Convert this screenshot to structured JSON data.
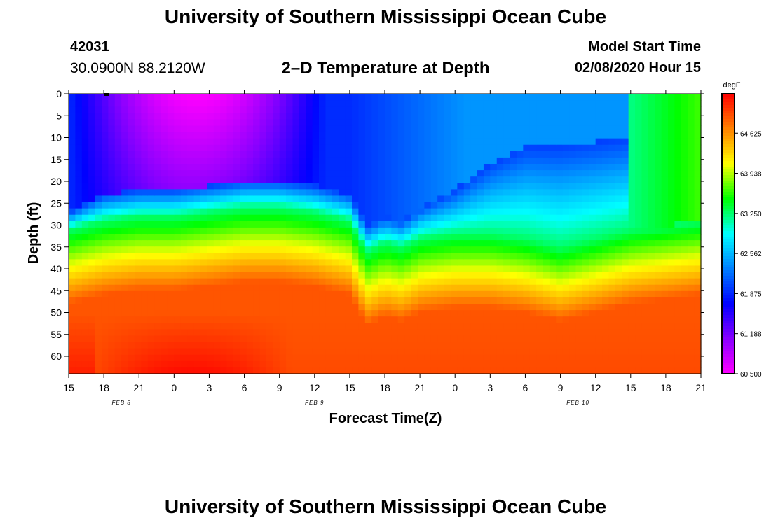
{
  "header": {
    "top_title": "University of Southern Mississippi Ocean Cube",
    "station_id": "42031",
    "coordinates": "30.0900N 88.2120W",
    "chart_title": "2–D Temperature at Depth",
    "model_start_label": "Model Start Time",
    "model_start_value": "02/08/2020 Hour 15"
  },
  "footer": {
    "bottom_title": "University of Southern Mississippi Ocean Cube"
  },
  "chart_data": {
    "type": "heatmap",
    "title": "2–D Temperature at Depth",
    "xlabel": "Forecast Time(Z)",
    "ylabel": "Depth (ft)",
    "x_tick_labels": [
      "15",
      "18",
      "21",
      "0",
      "3",
      "6",
      "9",
      "12",
      "15",
      "18",
      "21",
      "0",
      "3",
      "6",
      "9",
      "12",
      "15",
      "18",
      "21"
    ],
    "x_range_hours": [
      0,
      54
    ],
    "date_labels": [
      {
        "label": "FEB 8",
        "hour": 4.5
      },
      {
        "label": "FEB 9",
        "hour": 21
      },
      {
        "label": "FEB 10",
        "hour": 43.5
      }
    ],
    "y_ticks": [
      0,
      5,
      10,
      15,
      20,
      25,
      30,
      35,
      40,
      45,
      50,
      55,
      60
    ],
    "y_range": [
      0,
      64
    ],
    "colorbar": {
      "unit": "degF",
      "min": 60.5,
      "max": 65.3,
      "tick_values": [
        60.5,
        61.188,
        61.875,
        62.562,
        63.25,
        63.938,
        64.625
      ],
      "tick_labels": [
        "60.500",
        "61.188",
        "61.875",
        "62.562",
        "63.250",
        "63.938",
        "64.625"
      ],
      "colors": [
        "#ff00ff",
        "#8800ff",
        "#0000ff",
        "#0080ff",
        "#00ffff",
        "#00ff00",
        "#ffff00",
        "#ff8000",
        "#ff0000"
      ]
    },
    "thermocline": {
      "hours": [
        0,
        3,
        6,
        9,
        12,
        15,
        18,
        21,
        24,
        25.5,
        27,
        28.5,
        30,
        33,
        36,
        39,
        42,
        45,
        48,
        51,
        54
      ],
      "iso_25_depth_ft": [
        31,
        29,
        28,
        28,
        27,
        26,
        26,
        27,
        29,
        36,
        34,
        35,
        33,
        32,
        32,
        33,
        35,
        33,
        31,
        30,
        29
      ],
      "upper_iso_depth_ft": [
        27,
        23,
        22,
        22,
        21,
        20,
        20,
        21,
        23,
        30,
        28,
        29,
        26,
        22,
        16,
        12,
        12,
        11,
        10,
        9,
        8
      ],
      "deep_warm_core_hours": [
        2,
        19
      ],
      "surface_cold_core_hours": [
        3,
        21
      ],
      "late_surface_warming_hour": 50
    }
  }
}
